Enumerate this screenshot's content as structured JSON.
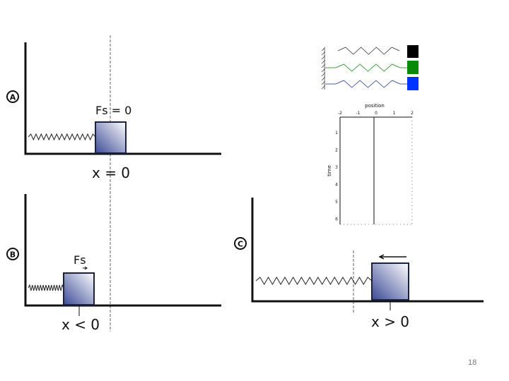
{
  "slide": {
    "page_number": "18"
  },
  "panels": {
    "a": {
      "badge": "A",
      "force": "Fs = 0",
      "position": "x = 0"
    },
    "b": {
      "badge": "B",
      "force": "Fs",
      "position": "x < 0"
    },
    "c": {
      "badge": "C",
      "position": "x > 0"
    }
  },
  "inset": {
    "mass_colors": [
      "#000000",
      "#0a8a0a",
      "#0033ff"
    ],
    "plot": {
      "xlabel": "position",
      "ylabel": "time",
      "x_ticks": [
        "-2",
        "-1",
        "0",
        "1",
        "2"
      ],
      "y_ticks": [
        "1",
        "2",
        "3",
        "4",
        "5",
        "6"
      ]
    }
  },
  "colors": {
    "block_dark": "#3b4a96",
    "block_light": "#ffffff",
    "dashed": "#b0b0b0"
  }
}
